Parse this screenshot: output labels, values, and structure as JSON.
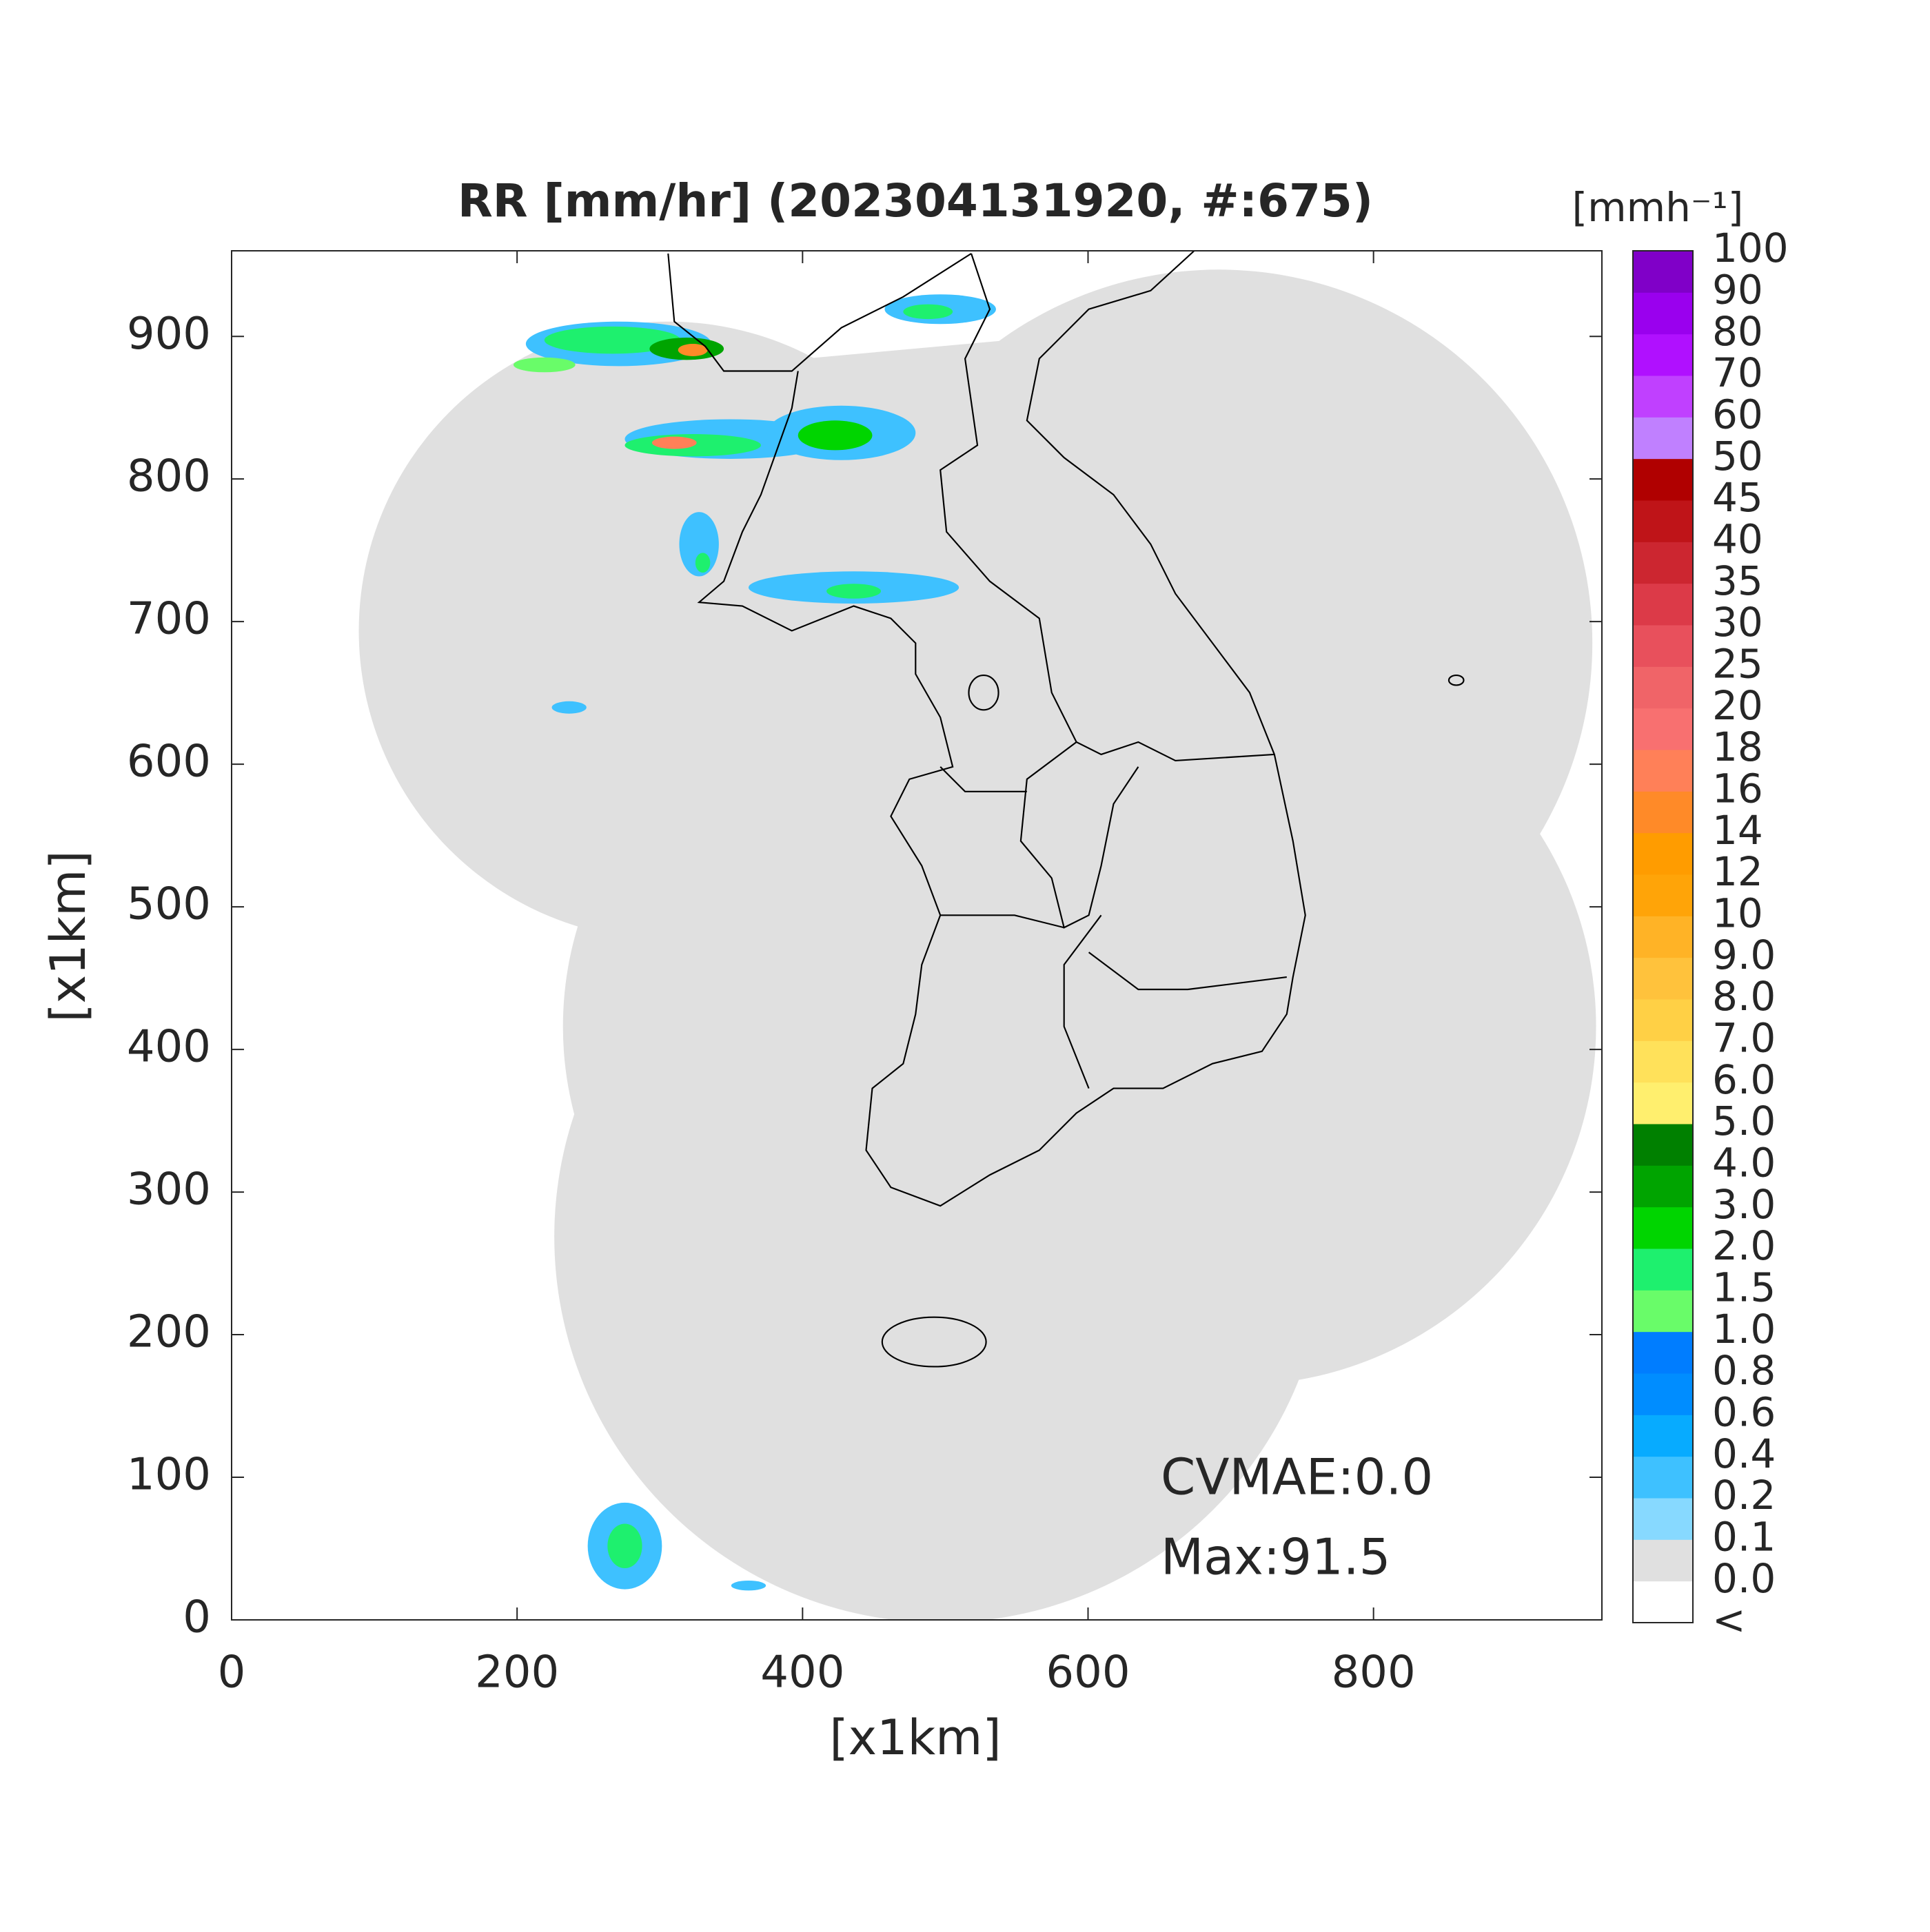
{
  "chart_data": {
    "type": "map",
    "title": "RR [mm/hr] (202304131920, #:675)",
    "xlabel": "[x1km]",
    "ylabel": "[x1km]",
    "xlim": [
      0,
      960
    ],
    "ylim": [
      0,
      960
    ],
    "xticks": [
      0,
      200,
      400,
      600,
      800
    ],
    "yticks": [
      0,
      100,
      200,
      300,
      400,
      500,
      600,
      700,
      800,
      900
    ],
    "colorbar": {
      "unit": "[mmh⁻¹]",
      "labels": [
        "<",
        "0.0",
        "0.1",
        "0.2",
        "0.4",
        "0.6",
        "0.8",
        "1.0",
        "1.5",
        "2.0",
        "3.0",
        "4.0",
        "5.0",
        "6.0",
        "7.0",
        "8.0",
        "9.0",
        "10",
        "12",
        "14",
        "16",
        "18",
        "20",
        "25",
        "30",
        "35",
        "40",
        "45",
        "50",
        "60",
        "70",
        "80",
        "90",
        "100"
      ],
      "colors": [
        "#ffffff",
        "#e0e0e0",
        "#87d9ff",
        "#3ec1ff",
        "#07abff",
        "#008dff",
        "#007dff",
        "#69fc69",
        "#1ef06e",
        "#00d500",
        "#00a400",
        "#008000",
        "#ffef6e",
        "#ffe15a",
        "#ffd045",
        "#ffc23c",
        "#ffb326",
        "#ffa408",
        "#ff9c00",
        "#ff8a28",
        "#ff8058",
        "#f87070",
        "#f06468",
        "#e8505c",
        "#dc3a48",
        "#cc2630",
        "#bf1418",
        "#b00000",
        "#c080ff",
        "#c040ff",
        "#b010ff",
        "#9a00ee",
        "#8000c8",
        "#333333"
      ]
    },
    "annotations": [
      "CVMAE:0.0",
      "Max:91.5"
    ]
  }
}
